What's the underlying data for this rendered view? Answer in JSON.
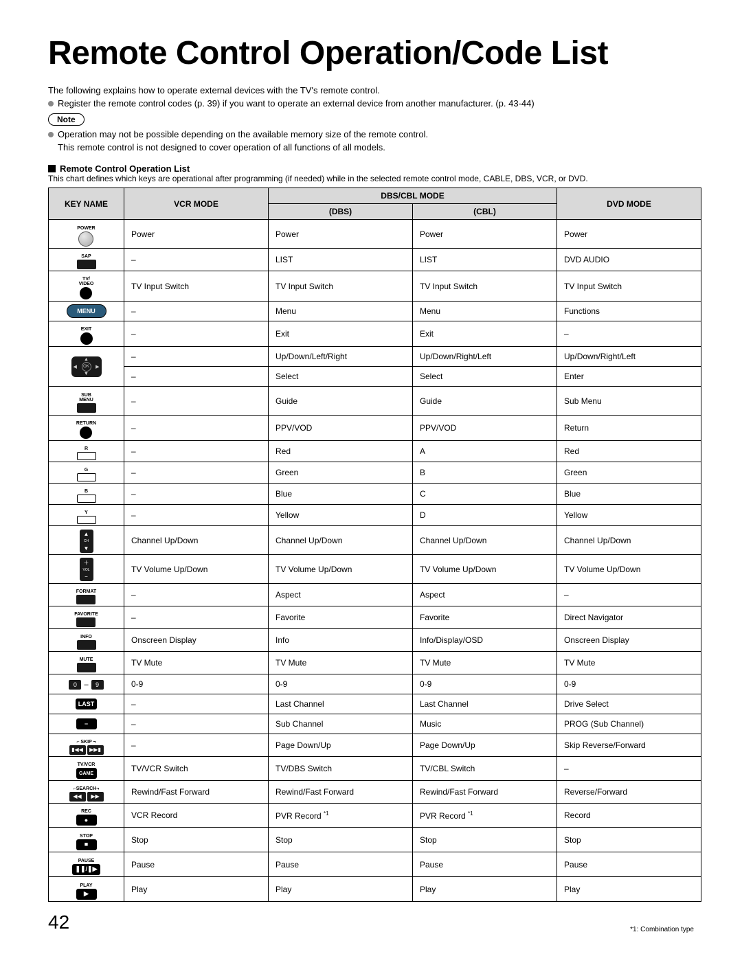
{
  "title": "Remote Control Operation/Code List",
  "intro_primary": "The following explains how to operate external devices with the TV's remote control.",
  "intro_bullet": "Register the remote control codes (p. 39) if you want to operate an external device from another manufacturer. (p. 43-44)",
  "note_label": "Note",
  "note_bullet_line1": "Operation may not be possible depending on the available memory size of the remote control.",
  "note_bullet_line2": "This remote control is not designed to cover operation of all functions of all models.",
  "section_title": "Remote Control Operation List",
  "chart_description": "This chart defines which keys are operational after programming (if needed) while in the selected remote control mode, CABLE, DBS, VCR, or DVD.",
  "headers": {
    "key": "KEY NAME",
    "vcr": "VCR MODE",
    "dbs_cbl": "DBS/CBL MODE",
    "dbs": "(DBS)",
    "cbl": "(CBL)",
    "dvd": "DVD MODE"
  },
  "rows": [
    {
      "key": "POWER",
      "vcr": "Power",
      "dbs": "Power",
      "cbl": "Power",
      "dvd": "Power"
    },
    {
      "key": "SAP",
      "vcr": "–",
      "dbs": "LIST",
      "cbl": "LIST",
      "dvd": "DVD AUDIO"
    },
    {
      "key": "TV/VIDEO",
      "vcr": "TV Input Switch",
      "dbs": "TV Input Switch",
      "cbl": "TV Input Switch",
      "dvd": "TV Input Switch"
    },
    {
      "key": "MENU",
      "vcr": "–",
      "dbs": "Menu",
      "cbl": "Menu",
      "dvd": "Functions"
    },
    {
      "key": "EXIT",
      "vcr": "–",
      "dbs": "Exit",
      "cbl": "Exit",
      "dvd": "–"
    },
    {
      "key": "DPAD1",
      "vcr": "–",
      "dbs": "Up/Down/Left/Right",
      "cbl": "Up/Down/Right/Left",
      "dvd": "Up/Down/Right/Left"
    },
    {
      "key": "DPAD2",
      "vcr": "–",
      "dbs": "Select",
      "cbl": "Select",
      "dvd": "Enter"
    },
    {
      "key": "SUBMENU",
      "vcr": "–",
      "dbs": "Guide",
      "cbl": "Guide",
      "dvd": "Sub Menu"
    },
    {
      "key": "RETURN",
      "vcr": "–",
      "dbs": "PPV/VOD",
      "cbl": "PPV/VOD",
      "dvd": "Return"
    },
    {
      "key": "R",
      "vcr": "–",
      "dbs": "Red",
      "cbl": "A",
      "dvd": "Red"
    },
    {
      "key": "G",
      "vcr": "–",
      "dbs": "Green",
      "cbl": "B",
      "dvd": "Green"
    },
    {
      "key": "B",
      "vcr": "–",
      "dbs": "Blue",
      "cbl": "C",
      "dvd": "Blue"
    },
    {
      "key": "Y",
      "vcr": "–",
      "dbs": "Yellow",
      "cbl": "D",
      "dvd": "Yellow"
    },
    {
      "key": "CH",
      "vcr": "Channel Up/Down",
      "dbs": "Channel Up/Down",
      "cbl": "Channel Up/Down",
      "dvd": "Channel Up/Down"
    },
    {
      "key": "VOL",
      "vcr": "TV Volume Up/Down",
      "dbs": "TV Volume Up/Down",
      "cbl": "TV Volume Up/Down",
      "dvd": "TV Volume Up/Down"
    },
    {
      "key": "FORMAT",
      "vcr": "–",
      "dbs": "Aspect",
      "cbl": "Aspect",
      "dvd": "–"
    },
    {
      "key": "FAVORITE",
      "vcr": "–",
      "dbs": "Favorite",
      "cbl": "Favorite",
      "dvd": "Direct Navigator"
    },
    {
      "key": "INFO",
      "vcr": "Onscreen Display",
      "dbs": "Info",
      "cbl": "Info/Display/OSD",
      "dvd": "Onscreen Display"
    },
    {
      "key": "MUTE",
      "vcr": "TV Mute",
      "dbs": "TV Mute",
      "cbl": "TV Mute",
      "dvd": "TV Mute"
    },
    {
      "key": "NUM",
      "vcr": "0-9",
      "dbs": "0-9",
      "cbl": "0-9",
      "dvd": "0-9"
    },
    {
      "key": "LAST",
      "vcr": "–",
      "dbs": "Last Channel",
      "cbl": "Last Channel",
      "dvd": "Drive Select"
    },
    {
      "key": "DASH",
      "vcr": "–",
      "dbs": "Sub Channel",
      "cbl": "Music",
      "dvd": "PROG (Sub Channel)"
    },
    {
      "key": "SKIP",
      "vcr": "–",
      "dbs": "Page Down/Up",
      "cbl": "Page Down/Up",
      "dvd": "Skip Reverse/Forward"
    },
    {
      "key": "TVVCR",
      "vcr": "TV/VCR Switch",
      "dbs": "TV/DBS Switch",
      "cbl": "TV/CBL Switch",
      "dvd": "–"
    },
    {
      "key": "SEARCH",
      "vcr": "Rewind/Fast Forward",
      "dbs": "Rewind/Fast Forward",
      "cbl": "Rewind/Fast Forward",
      "dvd": "Reverse/Forward"
    },
    {
      "key": "REC",
      "vcr": "VCR Record",
      "dbs": "PVR Record ",
      "cbl": "PVR Record ",
      "dvd": "Record"
    },
    {
      "key": "STOP",
      "vcr": "Stop",
      "dbs": "Stop",
      "cbl": "Stop",
      "dvd": "Stop"
    },
    {
      "key": "PAUSE",
      "vcr": "Pause",
      "dbs": "Pause",
      "cbl": "Pause",
      "dvd": "Pause"
    },
    {
      "key": "PLAY",
      "vcr": "Play",
      "dbs": "Play",
      "cbl": "Play",
      "dvd": "Play"
    }
  ],
  "key_labels": {
    "POWER": "POWER",
    "SAP": "SAP",
    "TV/VIDEO": "TV/\nVIDEO",
    "MENU": "MENU",
    "EXIT": "EXIT",
    "SUBMENU": "SUB\nMENU",
    "RETURN": "RETURN",
    "R": "R",
    "G": "G",
    "B": "B",
    "Y": "Y",
    "CH": "CH",
    "VOL": "VOL",
    "FORMAT": "FORMAT",
    "FAVORITE": "FAVORITE",
    "INFO": "INFO",
    "MUTE": "MUTE",
    "LAST": "LAST",
    "TVVCR": "TV/VCR\nGAME",
    "REC": "REC",
    "STOP": "STOP",
    "PAUSE": "PAUSE",
    "PLAY": "PLAY",
    "SKIP": "SKIP",
    "SEARCH": "SEARCH",
    "NUM0": "0",
    "NUM9": "9"
  },
  "footnote_marker": "*1",
  "footnote": "*1:  Combination type",
  "page_number": "42",
  "colors": {
    "header_bg": "#d9d9d9",
    "border": "#000000",
    "bullet": "#888888",
    "menu_btn": "#2a5a7a"
  }
}
